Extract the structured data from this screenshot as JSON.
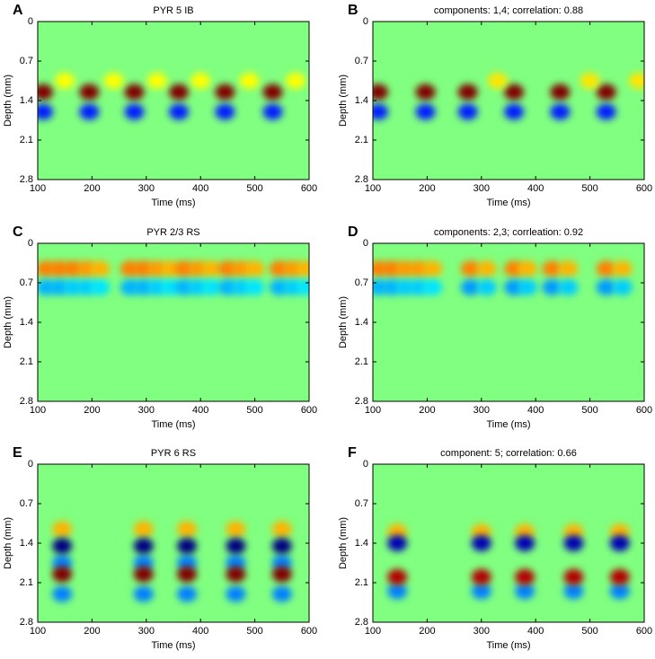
{
  "chart_data": [
    {
      "type": "heatmap",
      "panel": "A",
      "title": "PYR 5 IB",
      "xlabel": "Time (ms)",
      "ylabel": "Depth (mm)",
      "xlim": [
        100,
        600
      ],
      "xticks": [
        100,
        200,
        300,
        400,
        500,
        600
      ],
      "ylim": [
        0,
        2.8
      ],
      "yticks": [
        0,
        0.7,
        1.4,
        2.1,
        2.8
      ],
      "y_reversed": true,
      "zlim": [
        -1,
        1
      ],
      "colormap": "jet",
      "x": [
        110,
        195,
        278,
        360,
        445,
        533,
        110,
        195,
        278,
        360,
        445,
        533,
        150,
        240,
        320,
        400,
        490,
        575
      ],
      "y": [
        1.25,
        1.25,
        1.25,
        1.25,
        1.25,
        1.25,
        1.6,
        1.6,
        1.6,
        1.6,
        1.6,
        1.6,
        1.05,
        1.05,
        1.05,
        1.05,
        1.05,
        1.05
      ],
      "values": [
        1,
        1,
        1,
        1,
        1,
        1,
        -0.7,
        -0.7,
        -0.7,
        -0.7,
        -0.7,
        -0.7,
        0.25,
        0.25,
        0.25,
        0.25,
        0.25,
        0.25
      ]
    },
    {
      "type": "heatmap",
      "panel": "B",
      "title": "components: 1,4;  correlation: 0.88",
      "xlabel": "Time (ms)",
      "ylabel": "Depth (mm)",
      "xlim": [
        100,
        600
      ],
      "xticks": [
        100,
        200,
        300,
        400,
        500,
        600
      ],
      "ylim": [
        0,
        2.8
      ],
      "yticks": [
        0,
        0.7,
        1.4,
        2.1,
        2.8
      ],
      "y_reversed": true,
      "zlim": [
        -1,
        1
      ],
      "colormap": "jet",
      "x": [
        110,
        197,
        275,
        360,
        445,
        530,
        110,
        197,
        275,
        360,
        445,
        530,
        330,
        500,
        590
      ],
      "y": [
        1.25,
        1.25,
        1.25,
        1.25,
        1.25,
        1.25,
        1.6,
        1.6,
        1.6,
        1.6,
        1.6,
        1.6,
        1.05,
        1.05,
        1.05
      ],
      "values": [
        1,
        1,
        1,
        1,
        1,
        1,
        -0.7,
        -0.7,
        -0.7,
        -0.7,
        -0.7,
        -0.7,
        0.3,
        0.3,
        0.3
      ]
    },
    {
      "type": "heatmap",
      "panel": "C",
      "title": "PYR 2/3 RS",
      "xlabel": "Time (ms)",
      "ylabel": "Depth (mm)",
      "xlim": [
        100,
        600
      ],
      "xticks": [
        100,
        200,
        300,
        400,
        500,
        600
      ],
      "ylim": [
        0,
        2.8
      ],
      "yticks": [
        0,
        0.7,
        1.4,
        2.1,
        2.8
      ],
      "y_reversed": true,
      "zlim": [
        -1,
        1
      ],
      "colormap": "jet",
      "x": [
        115,
        140,
        165,
        190,
        215,
        270,
        295,
        320,
        345,
        370,
        395,
        420,
        450,
        475,
        500,
        545,
        570,
        595,
        115,
        140,
        165,
        190,
        215,
        270,
        295,
        320,
        345,
        370,
        395,
        420,
        450,
        475,
        500,
        545,
        570,
        595
      ],
      "y": [
        0.45,
        0.45,
        0.45,
        0.45,
        0.45,
        0.45,
        0.45,
        0.45,
        0.45,
        0.45,
        0.45,
        0.45,
        0.45,
        0.45,
        0.45,
        0.45,
        0.45,
        0.45,
        0.78,
        0.78,
        0.78,
        0.78,
        0.78,
        0.78,
        0.78,
        0.78,
        0.78,
        0.78,
        0.78,
        0.78,
        0.78,
        0.78,
        0.78,
        0.78,
        0.78,
        0.78
      ],
      "values": [
        0.5,
        0.5,
        0.5,
        0.45,
        0.4,
        0.5,
        0.5,
        0.45,
        0.4,
        0.5,
        0.45,
        0.4,
        0.5,
        0.45,
        0.4,
        0.5,
        0.45,
        0.4,
        -0.4,
        -0.4,
        -0.35,
        -0.35,
        -0.3,
        -0.4,
        -0.4,
        -0.35,
        -0.3,
        -0.4,
        -0.35,
        -0.3,
        -0.4,
        -0.35,
        -0.3,
        -0.4,
        -0.35,
        -0.3
      ]
    },
    {
      "type": "heatmap",
      "panel": "D",
      "title": "components: 2,3;  corrleation: 0.92",
      "xlabel": "Time (ms)",
      "ylabel": "Depth (mm)",
      "xlim": [
        100,
        600
      ],
      "xticks": [
        100,
        200,
        300,
        400,
        500,
        600
      ],
      "ylim": [
        0,
        2.8
      ],
      "yticks": [
        0,
        0.7,
        1.4,
        2.1,
        2.8
      ],
      "y_reversed": true,
      "zlim": [
        -1,
        1
      ],
      "colormap": "jet",
      "x": [
        110,
        135,
        160,
        185,
        210,
        280,
        310,
        360,
        385,
        430,
        460,
        530,
        560,
        110,
        135,
        160,
        185,
        210,
        280,
        310,
        360,
        385,
        430,
        460,
        530,
        560
      ],
      "y": [
        0.45,
        0.45,
        0.45,
        0.45,
        0.45,
        0.45,
        0.45,
        0.45,
        0.45,
        0.45,
        0.45,
        0.45,
        0.45,
        0.78,
        0.78,
        0.78,
        0.78,
        0.78,
        0.78,
        0.78,
        0.78,
        0.78,
        0.78,
        0.78,
        0.78,
        0.78
      ],
      "values": [
        0.5,
        0.5,
        0.45,
        0.45,
        0.4,
        0.5,
        0.4,
        0.5,
        0.4,
        0.5,
        0.4,
        0.5,
        0.4,
        -0.4,
        -0.4,
        -0.35,
        -0.35,
        -0.3,
        -0.45,
        -0.35,
        -0.45,
        -0.35,
        -0.45,
        -0.35,
        -0.45,
        -0.35
      ]
    },
    {
      "type": "heatmap",
      "panel": "E",
      "title": "PYR 6 RS",
      "xlabel": "Time (ms)",
      "ylabel": "Depth (mm)",
      "xlim": [
        100,
        600
      ],
      "xticks": [
        100,
        200,
        300,
        400,
        500,
        600
      ],
      "ylim": [
        0,
        2.8
      ],
      "yticks": [
        0,
        0.7,
        1.4,
        2.1,
        2.8
      ],
      "y_reversed": true,
      "zlim": [
        -1,
        1
      ],
      "colormap": "jet",
      "x": [
        145,
        295,
        375,
        465,
        550,
        145,
        295,
        375,
        465,
        550,
        145,
        295,
        375,
        465,
        550,
        145,
        295,
        375,
        465,
        550,
        145,
        295,
        375,
        465,
        550
      ],
      "y": [
        1.15,
        1.15,
        1.15,
        1.15,
        1.15,
        1.75,
        1.75,
        1.75,
        1.75,
        1.75,
        2.3,
        2.3,
        2.3,
        2.3,
        2.3,
        1.45,
        1.45,
        1.45,
        1.45,
        1.45,
        1.95,
        1.95,
        1.95,
        1.95,
        1.95
      ],
      "values": [
        0.4,
        0.4,
        0.4,
        0.4,
        0.4,
        -0.5,
        -0.5,
        -0.5,
        -0.5,
        -0.5,
        -0.5,
        -0.5,
        -0.5,
        -0.5,
        -0.5,
        -1,
        -1,
        -1,
        -1,
        -1,
        1,
        1,
        1,
        1,
        1
      ]
    },
    {
      "type": "heatmap",
      "panel": "F",
      "title": "component: 5;  correlation: 0.66",
      "xlabel": "Time (ms)",
      "ylabel": "Depth (mm)",
      "xlim": [
        100,
        600
      ],
      "xticks": [
        100,
        200,
        300,
        400,
        500,
        600
      ],
      "ylim": [
        0,
        2.8
      ],
      "yticks": [
        0,
        0.7,
        1.4,
        2.1,
        2.8
      ],
      "y_reversed": true,
      "zlim": [
        -1,
        1
      ],
      "colormap": "jet",
      "x": [
        145,
        300,
        380,
        470,
        555,
        145,
        300,
        380,
        470,
        555,
        145,
        300,
        380,
        470,
        555,
        145,
        300,
        380,
        470,
        555
      ],
      "y": [
        1.2,
        1.2,
        1.2,
        1.2,
        1.2,
        2.25,
        2.25,
        2.25,
        2.25,
        2.25,
        1.4,
        1.4,
        1.4,
        1.4,
        1.4,
        2.0,
        2.0,
        2.0,
        2.0,
        2.0
      ],
      "values": [
        0.4,
        0.4,
        0.4,
        0.4,
        0.4,
        -0.5,
        -0.5,
        -0.5,
        -0.5,
        -0.5,
        -0.9,
        -0.9,
        -0.9,
        -0.9,
        -0.9,
        0.9,
        0.9,
        0.9,
        0.9,
        0.9
      ]
    }
  ]
}
